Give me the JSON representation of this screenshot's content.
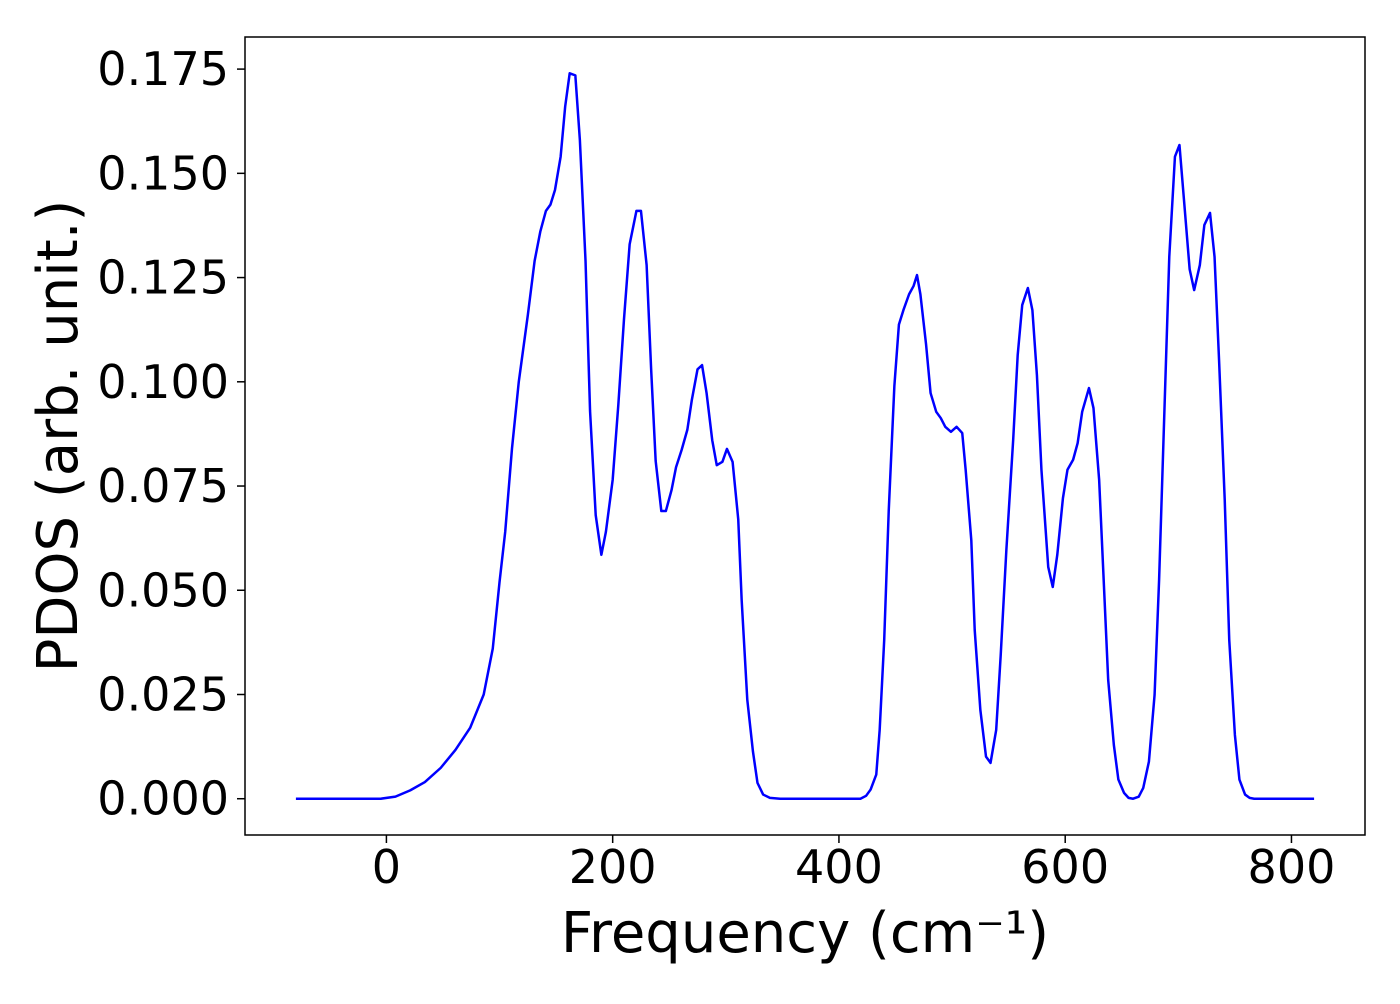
{
  "chart_data": {
    "type": "line",
    "xlabel": "Frequency (cm⁻¹)",
    "ylabel": "PDOS (arb. unit.)",
    "x": [
      -80,
      -5,
      8,
      21,
      34,
      48,
      61,
      74,
      86,
      94,
      100,
      105,
      111,
      117,
      125,
      131,
      136,
      141,
      145,
      149,
      154,
      158,
      162,
      167,
      171,
      176,
      180,
      185,
      190,
      194,
      200,
      205,
      210,
      215,
      221,
      225,
      230,
      234,
      238,
      243,
      247,
      252,
      256,
      261,
      266,
      270,
      275,
      279,
      283,
      288,
      292,
      297,
      301,
      306,
      311,
      314,
      319,
      324,
      328,
      333,
      339,
      348,
      419,
      424,
      428,
      433,
      436,
      440,
      444,
      449,
      453,
      457,
      462,
      466,
      469,
      472,
      477,
      481,
      486,
      490,
      494,
      499,
      504,
      509,
      512,
      517,
      520,
      525,
      530,
      534,
      539,
      543,
      548,
      554,
      558,
      562,
      567,
      571,
      575,
      579,
      585,
      589,
      593,
      598,
      602,
      607,
      611,
      615,
      621,
      625,
      630,
      634,
      638,
      643,
      647,
      652,
      656,
      660,
      665,
      669,
      674,
      679,
      683,
      688,
      692,
      697,
      701,
      705,
      710,
      714,
      719,
      723,
      728,
      732,
      736,
      741,
      745,
      750,
      754,
      759,
      763,
      767,
      820
    ],
    "series": [
      {
        "name": "PDOS",
        "color": "#0000ff",
        "values": [
          0,
          0,
          0.0005,
          0.002,
          0.004,
          0.0074,
          0.0117,
          0.017,
          0.025,
          0.036,
          0.052,
          0.064,
          0.084,
          0.1,
          0.116,
          0.129,
          0.136,
          0.141,
          0.1425,
          0.146,
          0.154,
          0.166,
          0.174,
          0.1735,
          0.158,
          0.129,
          0.093,
          0.068,
          0.0585,
          0.064,
          0.0765,
          0.0945,
          0.115,
          0.133,
          0.141,
          0.141,
          0.128,
          0.103,
          0.081,
          0.069,
          0.069,
          0.074,
          0.0795,
          0.0837,
          0.0885,
          0.0957,
          0.103,
          0.104,
          0.0973,
          0.086,
          0.08,
          0.0808,
          0.0839,
          0.0808,
          0.067,
          0.0477,
          0.0237,
          0.0113,
          0.0038,
          0.001,
          0.0002,
          0,
          0,
          0.0007,
          0.0022,
          0.0058,
          0.0165,
          0.038,
          0.069,
          0.099,
          0.1137,
          0.1172,
          0.121,
          0.123,
          0.1256,
          0.121,
          0.109,
          0.0973,
          0.0928,
          0.0913,
          0.0892,
          0.088,
          0.0892,
          0.0877,
          0.0789,
          0.062,
          0.0405,
          0.0213,
          0.0101,
          0.0086,
          0.0165,
          0.0345,
          0.0597,
          0.086,
          0.1064,
          0.1184,
          0.1225,
          0.1172,
          0.1016,
          0.0789,
          0.0556,
          0.0508,
          0.0585,
          0.0721,
          0.0789,
          0.0813,
          0.0853,
          0.0928,
          0.0985,
          0.0937,
          0.0765,
          0.0525,
          0.0285,
          0.0129,
          0.0046,
          0.0014,
          0.0002,
          0,
          0.0005,
          0.0026,
          0.0089,
          0.0249,
          0.0525,
          0.0957,
          0.13,
          0.154,
          0.1568,
          0.1436,
          0.127,
          0.122,
          0.128,
          0.1376,
          0.1405,
          0.13,
          0.1052,
          0.0717,
          0.0381,
          0.0153,
          0.0046,
          0.001,
          0.0002,
          0,
          0
        ]
      }
    ],
    "xlim": [
      -125,
      865
    ],
    "ylim": [
      -0.0087,
      0.1827
    ],
    "xticks": [
      0,
      200,
      400,
      600,
      800
    ],
    "yticks": [
      {
        "value": 0,
        "label": "0.000"
      },
      0.025,
      {
        "value": 0.05,
        "label": "0.050"
      },
      0.075,
      {
        "value": 0.1,
        "label": "0.100"
      },
      0.125,
      {
        "value": 0.15,
        "label": "0.150"
      },
      0.175
    ],
    "grid": false
  }
}
